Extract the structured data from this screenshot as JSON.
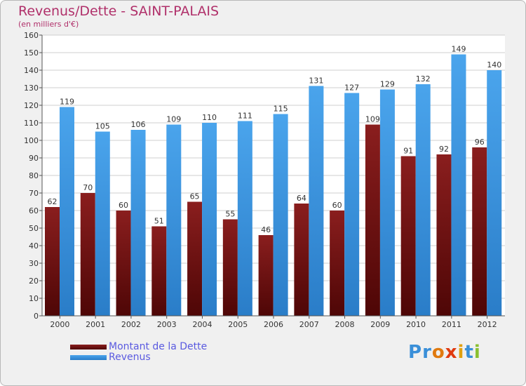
{
  "header": {
    "title": "Revenus/Dette - SAINT-PALAIS",
    "subtitle": "(en milliers d'€)"
  },
  "legend": [
    {
      "label": "Montant de la Dette",
      "color": "#7a1010"
    },
    {
      "label": "Revenus",
      "color": "#3b95e0"
    }
  ],
  "logo": {
    "text": "Proxiti",
    "letter_colors": [
      "#3a8fd8",
      "#3a8fd8",
      "#e07a10",
      "#e03a10",
      "#e0a010",
      "#3a8fd8",
      "#8ac030"
    ]
  },
  "chart_data": {
    "type": "bar",
    "categories": [
      "2000",
      "2001",
      "2002",
      "2003",
      "2004",
      "2005",
      "2006",
      "2007",
      "2008",
      "2009",
      "2010",
      "2011",
      "2012"
    ],
    "series": [
      {
        "name": "Montant de la Dette",
        "color": "#7a1010",
        "values": [
          62,
          70,
          60,
          51,
          65,
          55,
          46,
          64,
          60,
          109,
          91,
          92,
          96
        ]
      },
      {
        "name": "Revenus",
        "color": "#3b95e0",
        "values": [
          119,
          105,
          106,
          109,
          110,
          111,
          115,
          131,
          127,
          129,
          132,
          149,
          140
        ]
      }
    ],
    "yticks": [
      0,
      10,
      20,
      30,
      40,
      50,
      60,
      70,
      80,
      90,
      100,
      110,
      120,
      130,
      140,
      150,
      160
    ],
    "ylim": [
      0,
      160
    ],
    "grid": true,
    "data_labels": true,
    "legend_position": "bottom-left"
  }
}
